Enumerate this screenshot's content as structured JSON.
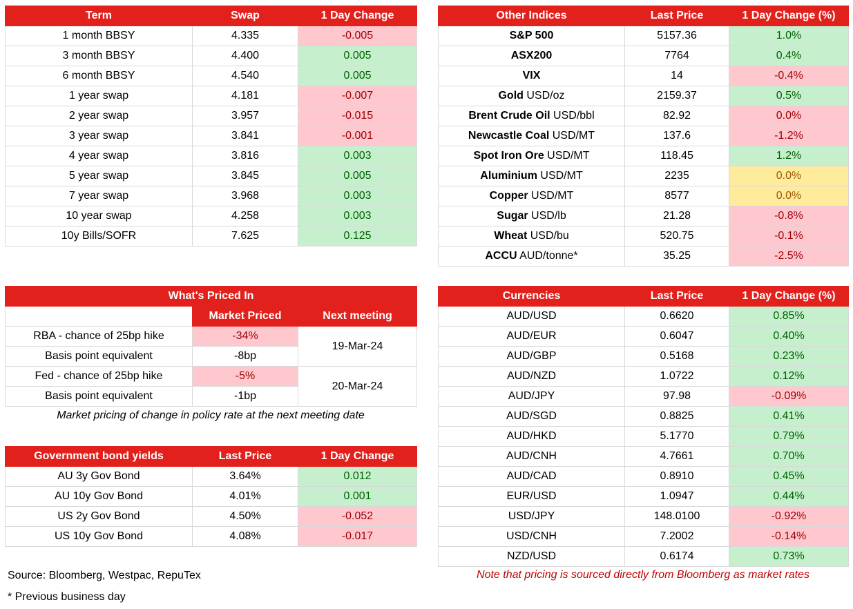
{
  "swaps": {
    "headers": [
      "Term",
      "Swap",
      "1 Day Change"
    ],
    "rows": [
      {
        "term": "1 month BBSY",
        "swap": "4.335",
        "change": "-0.005"
      },
      {
        "term": "3 month BBSY",
        "swap": "4.400",
        "change": "0.005"
      },
      {
        "term": "6 month BBSY",
        "swap": "4.540",
        "change": "0.005"
      },
      {
        "term": "1 year swap",
        "swap": "4.181",
        "change": "-0.007"
      },
      {
        "term": "2 year swap",
        "swap": "3.957",
        "change": "-0.015"
      },
      {
        "term": "3 year swap",
        "swap": "3.841",
        "change": "-0.001"
      },
      {
        "term": "4 year swap",
        "swap": "3.816",
        "change": "0.003"
      },
      {
        "term": "5 year swap",
        "swap": "3.845",
        "change": "0.005"
      },
      {
        "term": "7 year swap",
        "swap": "3.968",
        "change": "0.003"
      },
      {
        "term": "10 year swap",
        "swap": "4.258",
        "change": "0.003"
      },
      {
        "term": "10y Bills/SOFR",
        "swap": "7.625",
        "change": "0.125"
      }
    ]
  },
  "indices": {
    "headers": [
      "Other Indices",
      "Last Price",
      "1 Day Change (%)"
    ],
    "rows": [
      {
        "name": "S&P 500",
        "unit": "",
        "price": "5157.36",
        "change": "1.0%"
      },
      {
        "name": "ASX200",
        "unit": "",
        "price": "7764",
        "change": "0.4%"
      },
      {
        "name": "VIX",
        "unit": "",
        "price": "14",
        "change": "-0.4%"
      },
      {
        "name": "Gold",
        "unit": " USD/oz",
        "price": "2159.37",
        "change": "0.5%"
      },
      {
        "name": "Brent Crude Oil",
        "unit": " USD/bbl",
        "price": "82.92",
        "change": "0.0%"
      },
      {
        "name": "Newcastle Coal",
        "unit": " USD/MT",
        "price": "137.6",
        "change": "-1.2%"
      },
      {
        "name": "Spot Iron Ore",
        "unit": " USD/MT",
        "price": "118.45",
        "change": "1.2%"
      },
      {
        "name": "Aluminium",
        "unit": " USD/MT",
        "price": "2235",
        "change": "0.0%"
      },
      {
        "name": "Copper",
        "unit": " USD/MT",
        "price": "8577",
        "change": "0.0%"
      },
      {
        "name": "Sugar",
        "unit": " USD/lb",
        "price": "21.28",
        "change": "-0.8%"
      },
      {
        "name": "Wheat",
        "unit": " USD/bu",
        "price": "520.75",
        "change": "-0.1%"
      },
      {
        "name": "ACCU",
        "unit": " AUD/tonne*",
        "price": "35.25",
        "change": "-2.5%"
      }
    ]
  },
  "priced_in": {
    "title": "What's Priced In",
    "headers": [
      "Market Priced",
      "Next meeting"
    ],
    "rows": [
      {
        "label": "RBA - chance of 25bp hike",
        "value": "-34%"
      },
      {
        "label": "Basis point equivalent",
        "value": "-8bp"
      },
      {
        "label": "Fed - chance of 25bp hike",
        "value": "-5%"
      },
      {
        "label": "Basis point equivalent",
        "value": "-1bp"
      }
    ],
    "meetings": [
      "19-Mar-24",
      "20-Mar-24"
    ],
    "caption": "Market pricing of change in policy rate at the next meeting date"
  },
  "bonds": {
    "headers": [
      "Government bond yields",
      "Last Price",
      "1 Day Change"
    ],
    "rows": [
      {
        "name": "AU 3y Gov Bond",
        "price": "3.64%",
        "change": "0.012"
      },
      {
        "name": "AU 10y Gov Bond",
        "price": "4.01%",
        "change": "0.001"
      },
      {
        "name": "US 2y Gov Bond",
        "price": "4.50%",
        "change": "-0.052"
      },
      {
        "name": "US 10y Gov Bond",
        "price": "4.08%",
        "change": "-0.017"
      }
    ]
  },
  "currencies": {
    "headers": [
      "Currencies",
      "Last Price",
      "1 Day Change (%)"
    ],
    "rows": [
      {
        "pair": "AUD/USD",
        "price": "0.6620",
        "change": "0.85%"
      },
      {
        "pair": "AUD/EUR",
        "price": "0.6047",
        "change": "0.40%"
      },
      {
        "pair": "AUD/GBP",
        "price": "0.5168",
        "change": "0.23%"
      },
      {
        "pair": "AUD/NZD",
        "price": "1.0722",
        "change": "0.12%"
      },
      {
        "pair": "AUD/JPY",
        "price": "97.98",
        "change": "-0.09%"
      },
      {
        "pair": "AUD/SGD",
        "price": "0.8825",
        "change": "0.41%"
      },
      {
        "pair": "AUD/HKD",
        "price": "5.1770",
        "change": "0.79%"
      },
      {
        "pair": "AUD/CNH",
        "price": "4.7661",
        "change": "0.70%"
      },
      {
        "pair": "AUD/CAD",
        "price": "0.8910",
        "change": "0.45%"
      },
      {
        "pair": "EUR/USD",
        "price": "1.0947",
        "change": "0.44%"
      },
      {
        "pair": "USD/JPY",
        "price": "148.0100",
        "change": "-0.92%"
      },
      {
        "pair": "USD/CNH",
        "price": "7.2002",
        "change": "-0.14%"
      },
      {
        "pair": "NZD/USD",
        "price": "0.6174",
        "change": "0.73%"
      }
    ],
    "note": "Note that pricing is sourced directly from Bloomberg as market rates"
  },
  "footer": {
    "source": "Source: Bloomberg, Westpac, RepuTex",
    "footnote": "* Previous business day"
  }
}
